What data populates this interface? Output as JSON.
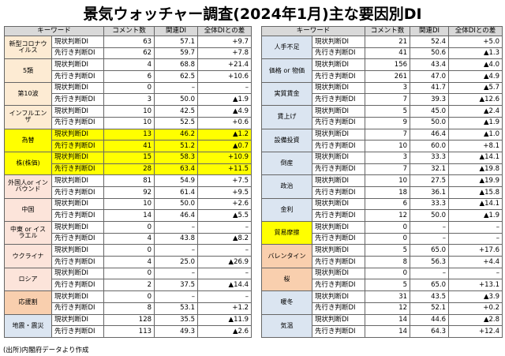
{
  "title": "景気ウォッチャー調査(2024年1月)主な要因別DI",
  "source": "(出所)内閣府データより作成",
  "tables": [
    {
      "headers": [
        "キーワード",
        "",
        "コメント数",
        "関連DI",
        "全体DIとの差"
      ],
      "groups": [
        {
          "keyword": "新型コロナウイルス",
          "color": "#fdebd3",
          "rows": [
            [
              "現状判断DI",
              "63",
              "57.1",
              "+9.7"
            ],
            [
              "先行き判断DI",
              "62",
              "59.7",
              "+7.8"
            ]
          ]
        },
        {
          "keyword": "5類",
          "color": "#fdebd3",
          "rows": [
            [
              "現状判断DI",
              "4",
              "68.8",
              "+21.4"
            ],
            [
              "先行き判断DI",
              "6",
              "62.5",
              "+10.6"
            ]
          ]
        },
        {
          "keyword": "第10波",
          "color": "#fdebd3",
          "rows": [
            [
              "現状判断DI",
              "0",
              "–",
              "–"
            ],
            [
              "先行き判断DI",
              "3",
              "50.0",
              "▲1.9"
            ]
          ]
        },
        {
          "keyword": "インフルエンザ",
          "color": "#fdebd3",
          "rows": [
            [
              "現状判断DI",
              "10",
              "42.5",
              "▲4.9"
            ],
            [
              "先行き判断DI",
              "10",
              "52.5",
              "+0.6"
            ]
          ]
        },
        {
          "keyword": "為替",
          "color": "#ffff00",
          "rows": [
            [
              "現状判断DI",
              "13",
              "46.2",
              "▲1.2"
            ],
            [
              "先行き判断DI",
              "41",
              "51.2",
              "▲0.7"
            ]
          ]
        },
        {
          "keyword": "株(株価)",
          "color": "#ffff00",
          "rows": [
            [
              "現状判断DI",
              "15",
              "58.3",
              "+10.9"
            ],
            [
              "先行き判断DI",
              "28",
              "63.4",
              "+11.5"
            ]
          ]
        },
        {
          "keyword": "外国人or インバウンド",
          "color": "#fce4da",
          "rows": [
            [
              "現状判断DI",
              "81",
              "54.9",
              "+7.5"
            ],
            [
              "先行き判断DI",
              "92",
              "61.4",
              "+9.5"
            ]
          ]
        },
        {
          "keyword": "中国",
          "color": "#fce4da",
          "rows": [
            [
              "現状判断DI",
              "10",
              "50.0",
              "+2.6"
            ],
            [
              "先行き判断DI",
              "14",
              "46.4",
              "▲5.5"
            ]
          ]
        },
        {
          "keyword": "中東 or イスラエル",
          "color": "#fce4da",
          "rows": [
            [
              "現状判断DI",
              "0",
              "–",
              "–"
            ],
            [
              "先行き判断DI",
              "4",
              "43.8",
              "▲8.2"
            ]
          ]
        },
        {
          "keyword": "ウクライナ",
          "color": "#fce4da",
          "rows": [
            [
              "現状判断DI",
              "0",
              "–",
              "–"
            ],
            [
              "先行き判断DI",
              "4",
              "25.0",
              "▲26.9"
            ]
          ]
        },
        {
          "keyword": "ロシア",
          "color": "#fce4da",
          "rows": [
            [
              "現状判断DI",
              "0",
              "–",
              "–"
            ],
            [
              "先行き判断DI",
              "2",
              "37.5",
              "▲14.4"
            ]
          ]
        },
        {
          "keyword": "応援割",
          "color": "#f9cfae",
          "rows": [
            [
              "現状判断DI",
              "0",
              "–",
              "–"
            ],
            [
              "先行き判断DI",
              "8",
              "53.1",
              "+1.2"
            ]
          ]
        },
        {
          "keyword": "地震・震災",
          "color": "#dbe5f1",
          "rows": [
            [
              "現状判断DI",
              "128",
              "35.5",
              "▲11.9"
            ],
            [
              "先行き判断DI",
              "113",
              "49.3",
              "▲2.6"
            ]
          ]
        }
      ]
    },
    {
      "headers": [
        "キーワード",
        "",
        "コメント数",
        "関連DI",
        "全体DIとの差"
      ],
      "groups": [
        {
          "keyword": "人手不足",
          "color": "#dbe5f1",
          "rows": [
            [
              "現状判断DI",
              "21",
              "52.4",
              "+5.0"
            ],
            [
              "先行き判断DI",
              "41",
              "50.6",
              "▲1.3"
            ]
          ]
        },
        {
          "keyword": "価格 or 物価",
          "color": "#dbe5f1",
          "rows": [
            [
              "現状判断DI",
              "156",
              "43.4",
              "▲4.0"
            ],
            [
              "先行き判断DI",
              "261",
              "47.0",
              "▲4.9"
            ]
          ]
        },
        {
          "keyword": "実質賃金",
          "color": "#dbe5f1",
          "rows": [
            [
              "現状判断DI",
              "3",
              "41.7",
              "▲5.7"
            ],
            [
              "先行き判断DI",
              "7",
              "39.3",
              "▲12.6"
            ]
          ]
        },
        {
          "keyword": "賃上げ",
          "color": "#dbe5f1",
          "rows": [
            [
              "現状判断DI",
              "5",
              "45.0",
              "▲2.4"
            ],
            [
              "先行き判断DI",
              "9",
              "50.0",
              "▲1.9"
            ]
          ]
        },
        {
          "keyword": "設備投資",
          "color": "#dbe5f1",
          "rows": [
            [
              "現状判断DI",
              "7",
              "46.4",
              "▲1.0"
            ],
            [
              "先行き判断DI",
              "10",
              "60.0",
              "+8.1"
            ]
          ]
        },
        {
          "keyword": "倒産",
          "color": "#dbe5f1",
          "rows": [
            [
              "現状判断DI",
              "3",
              "33.3",
              "▲14.1"
            ],
            [
              "先行き判断DI",
              "7",
              "32.1",
              "▲19.8"
            ]
          ]
        },
        {
          "keyword": "政治",
          "color": "#dbe5f1",
          "rows": [
            [
              "現状判断DI",
              "10",
              "27.5",
              "▲19.9"
            ],
            [
              "先行き判断DI",
              "18",
              "36.1",
              "▲15.8"
            ]
          ]
        },
        {
          "keyword": "金利",
          "color": "#dbe5f1",
          "rows": [
            [
              "現状判断DI",
              "6",
              "33.3",
              "▲14.1"
            ],
            [
              "先行き判断DI",
              "12",
              "50.0",
              "▲1.9"
            ]
          ]
        },
        {
          "keyword": "貿易摩擦",
          "color": "#ffff00",
          "rows": [
            [
              "現状判断DI",
              "0",
              "–",
              "–"
            ],
            [
              "先行き判断DI",
              "0",
              "–",
              "–"
            ]
          ]
        },
        {
          "keyword": "バレンタイン",
          "color": "#f9cfae",
          "rows": [
            [
              "現状判断DI",
              "5",
              "65.0",
              "+17.6"
            ],
            [
              "先行き判断DI",
              "8",
              "56.3",
              "+4.4"
            ]
          ]
        },
        {
          "keyword": "桜",
          "color": "#f9cfae",
          "rows": [
            [
              "現状判断DI",
              "0",
              "–",
              "–"
            ],
            [
              "先行き判断DI",
              "5",
              "65.0",
              "+13.1"
            ]
          ]
        },
        {
          "keyword": "暖冬",
          "color": "#dbe5f1",
          "rows": [
            [
              "現状判断DI",
              "31",
              "43.5",
              "▲3.9"
            ],
            [
              "先行き判断DI",
              "12",
              "52.1",
              "+0.2"
            ]
          ]
        },
        {
          "keyword": "気温",
          "color": "#dbe5f1",
          "rows": [
            [
              "現状判断DI",
              "14",
              "44.6",
              "▲2.8"
            ],
            [
              "先行き判断DI",
              "14",
              "64.3",
              "+12.4"
            ]
          ]
        }
      ]
    }
  ]
}
